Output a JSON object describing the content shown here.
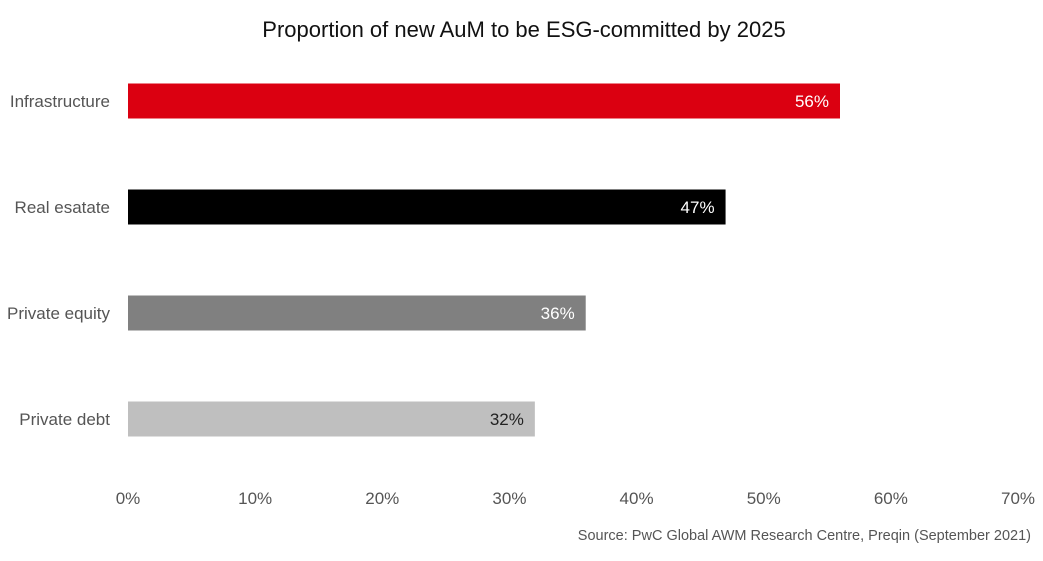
{
  "chart_data": {
    "type": "bar",
    "orientation": "horizontal",
    "title": "Proportion of new AuM to be ESG-committed by 2025",
    "categories": [
      "Infrastructure",
      "Real esatate",
      "Private equity",
      "Private debt"
    ],
    "values": [
      56,
      47,
      36,
      32
    ],
    "value_labels": [
      "56%",
      "47%",
      "36%",
      "32%"
    ],
    "bar_colors": [
      "#db0011",
      "#000000",
      "#808080",
      "#bfbfbf"
    ],
    "label_colors": [
      "#ffffff",
      "#ffffff",
      "#ffffff",
      "#222222"
    ],
    "xlim": [
      0,
      70
    ],
    "xticks": [
      0,
      10,
      20,
      30,
      40,
      50,
      60,
      70
    ],
    "xtick_labels": [
      "0%",
      "10%",
      "20%",
      "30%",
      "40%",
      "50%",
      "60%",
      "70%"
    ],
    "xlabel": "",
    "ylabel": "",
    "grid": false,
    "legend": "none"
  },
  "source": "Source: PwC Global AWM Research Centre, Preqin (September 2021)"
}
